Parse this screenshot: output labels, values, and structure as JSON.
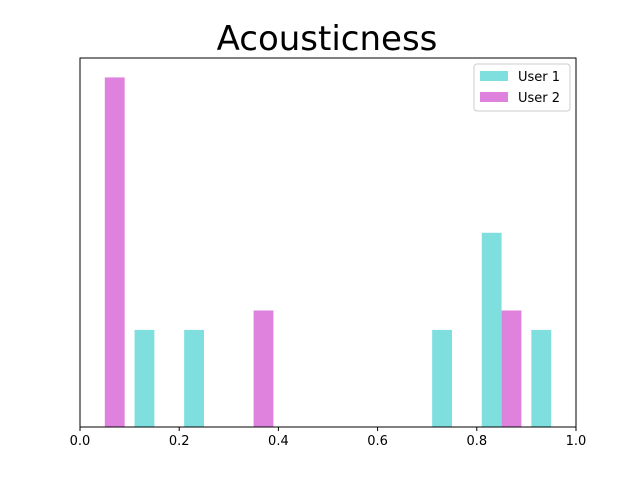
{
  "chart_data": {
    "type": "bar",
    "title": "Acousticness",
    "xlabel": "",
    "ylabel": "",
    "xlim": [
      0,
      1
    ],
    "ylim": [
      0,
      3.8
    ],
    "xticks": [
      "0.0",
      "0.2",
      "0.4",
      "0.6",
      "0.8",
      "1.0"
    ],
    "xtick_values": [
      0,
      0.2,
      0.4,
      0.6,
      0.8,
      1.0
    ],
    "legend_position": "top-right",
    "bar_width": 0.04,
    "series": [
      {
        "name": "User 1",
        "color": "#7fdfdf",
        "x": [
          0.13,
          0.23,
          0.73,
          0.83,
          0.93
        ],
        "values": [
          1,
          1,
          1,
          2,
          1
        ]
      },
      {
        "name": "User 2",
        "color": "#de82de",
        "x": [
          0.07,
          0.37,
          0.87
        ],
        "values": [
          3.6,
          1.2,
          1.2
        ]
      }
    ]
  }
}
